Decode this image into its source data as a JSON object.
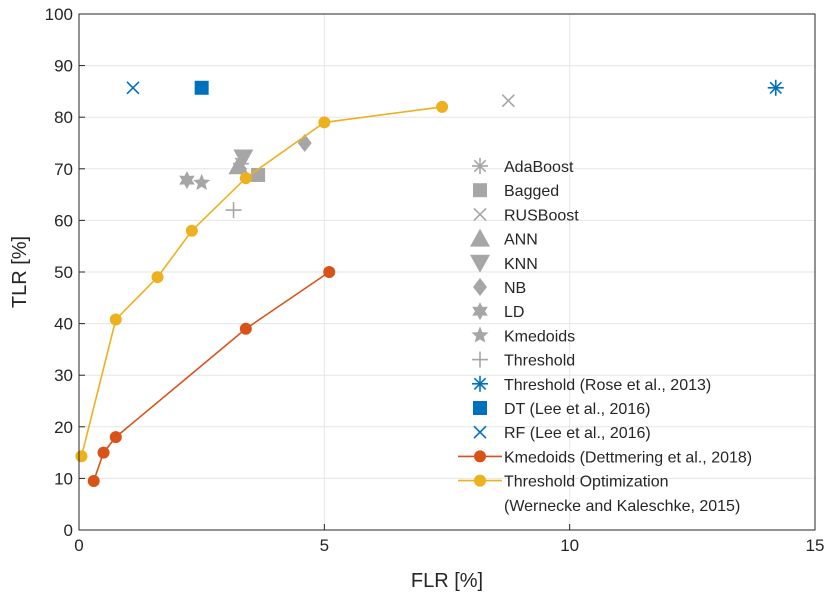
{
  "chart_data": {
    "type": "scatter",
    "xlabel": "FLR [%]",
    "ylabel": "TLR [%]",
    "xlim": [
      0,
      15
    ],
    "ylim": [
      0,
      100
    ],
    "xticks": [
      "0",
      "5",
      "10",
      "15"
    ],
    "yticks": [
      "0",
      "10",
      "20",
      "30",
      "40",
      "50",
      "60",
      "70",
      "80",
      "90",
      "100"
    ],
    "grid": true,
    "legend_position": "right",
    "colors": {
      "gray": "#a6a6a6",
      "blue": "#0072bd",
      "red": "#d95319",
      "yellow": "#edb120"
    },
    "series": [
      {
        "name": "AdaBoost",
        "marker": "asterisk",
        "color": "#a6a6a6",
        "points": [
          [
            3.3,
            71
          ]
        ]
      },
      {
        "name": "Bagged",
        "marker": "square",
        "color": "#a6a6a6",
        "points": [
          [
            3.65,
            68.8
          ]
        ]
      },
      {
        "name": "RUSBoost",
        "marker": "x",
        "color": "#a6a6a6",
        "points": [
          [
            8.75,
            83.2
          ]
        ]
      },
      {
        "name": "ANN",
        "marker": "triangle-up",
        "color": "#a6a6a6",
        "points": [
          [
            3.25,
            70.5
          ]
        ]
      },
      {
        "name": "KNN",
        "marker": "triangle-down",
        "color": "#a6a6a6",
        "points": [
          [
            3.35,
            72.2
          ]
        ]
      },
      {
        "name": "NB",
        "marker": "diamond",
        "color": "#a6a6a6",
        "points": [
          [
            4.6,
            75
          ]
        ]
      },
      {
        "name": "LD",
        "marker": "hexagram",
        "color": "#a6a6a6",
        "points": [
          [
            2.2,
            67.8
          ]
        ]
      },
      {
        "name": "Kmedoids",
        "marker": "pentagram",
        "color": "#a6a6a6",
        "points": [
          [
            2.5,
            67.3
          ]
        ]
      },
      {
        "name": "Threshold",
        "marker": "plus",
        "color": "#a6a6a6",
        "points": [
          [
            3.15,
            62
          ]
        ]
      },
      {
        "name": "Threshold (Rose et al., 2013)",
        "marker": "asterisk",
        "color": "#0072bd",
        "points": [
          [
            14.2,
            85.7
          ]
        ]
      },
      {
        "name": "DT (Lee et al., 2016)",
        "marker": "square",
        "color": "#0072bd",
        "points": [
          [
            2.5,
            85.7
          ]
        ]
      },
      {
        "name": "RF (Lee et al., 2016)",
        "marker": "x",
        "color": "#0072bd",
        "points": [
          [
            1.1,
            85.7
          ]
        ]
      },
      {
        "name": "Kmedoids (Dettmering et al., 2018)",
        "marker": "circle-line",
        "color": "#d95319",
        "points": [
          [
            0.3,
            9.5
          ],
          [
            0.5,
            15
          ],
          [
            0.75,
            18
          ],
          [
            3.4,
            39
          ],
          [
            5.1,
            50
          ]
        ]
      },
      {
        "name": "Threshold Optimization\n (Wernecke and Kaleschke, 2015)",
        "marker": "circle-line",
        "color": "#edb120",
        "points": [
          [
            0.05,
            14.3
          ],
          [
            0.75,
            40.8
          ],
          [
            1.6,
            49
          ],
          [
            2.3,
            58
          ],
          [
            3.4,
            68.2
          ],
          [
            5.0,
            79
          ],
          [
            7.4,
            82
          ]
        ]
      }
    ]
  }
}
